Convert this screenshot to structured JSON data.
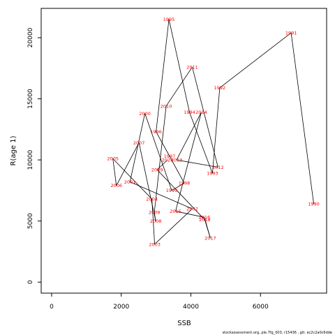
{
  "chart_data": {
    "type": "line",
    "xlabel": "SSB",
    "ylabel": "R(age 1)",
    "xlim": [
      -300,
      7900
    ],
    "ylim": [
      -900,
      22400
    ],
    "xticks": [
      0,
      2000,
      4000,
      6000
    ],
    "yticks": [
      0,
      5000,
      10000,
      15000,
      20000
    ],
    "footer": "stockassessment.org,  ple.7fg_003,  r15436 ,  git:  ec2c2a0c6dde",
    "colors": {
      "line": "#000000",
      "label": "#ff0000",
      "frame": "#000000"
    },
    "series": [
      {
        "points": [
          {
            "year": "1990",
            "x": 7530,
            "y": 6400
          },
          {
            "year": "1991",
            "x": 6880,
            "y": 20400
          },
          {
            "year": "1992",
            "x": 4830,
            "y": 15900
          },
          {
            "year": "1993",
            "x": 4620,
            "y": 8900
          },
          {
            "year": "1994",
            "x": 3960,
            "y": 13900
          },
          {
            "year": "1995",
            "x": 3370,
            "y": 21500
          },
          {
            "year": "1996",
            "x": 3000,
            "y": 12300
          },
          {
            "year": "1997",
            "x": 3390,
            "y": 10300
          },
          {
            "year": "1998",
            "x": 3810,
            "y": 8100
          },
          {
            "year": "1999",
            "x": 3450,
            "y": 7500
          },
          {
            "year": "2000",
            "x": 2680,
            "y": 13800
          },
          {
            "year": "2001",
            "x": 2250,
            "y": 8200
          },
          {
            "year": "2002",
            "x": 4040,
            "y": 6000
          },
          {
            "year": "2003",
            "x": 2960,
            "y": 3100
          },
          {
            "year": "2004",
            "x": 2880,
            "y": 6800
          },
          {
            "year": "2005",
            "x": 1760,
            "y": 10100
          },
          {
            "year": "2006",
            "x": 1860,
            "y": 7900
          },
          {
            "year": "2007",
            "x": 2510,
            "y": 11400
          },
          {
            "year": "2008",
            "x": 2990,
            "y": 5000
          },
          {
            "year": "2009",
            "x": 2950,
            "y": 5700
          },
          {
            "year": "2010",
            "x": 3290,
            "y": 14400
          },
          {
            "year": "2011",
            "x": 4040,
            "y": 17600
          },
          {
            "year": "2012",
            "x": 4780,
            "y": 9400
          },
          {
            "year": "2013",
            "x": 3590,
            "y": 10000
          },
          {
            "year": "2014",
            "x": 4300,
            "y": 13900
          },
          {
            "year": "2015",
            "x": 3560,
            "y": 5800
          },
          {
            "year": "2016",
            "x": 4390,
            "y": 5300
          },
          {
            "year": "2017",
            "x": 4560,
            "y": 3600
          },
          {
            "year": "2018",
            "x": 4400,
            "y": 5100
          },
          {
            "year": "2019",
            "x": 3030,
            "y": 9200
          },
          {
            "year": "2020",
            "x": 3330,
            "y": 10000
          }
        ]
      }
    ]
  }
}
